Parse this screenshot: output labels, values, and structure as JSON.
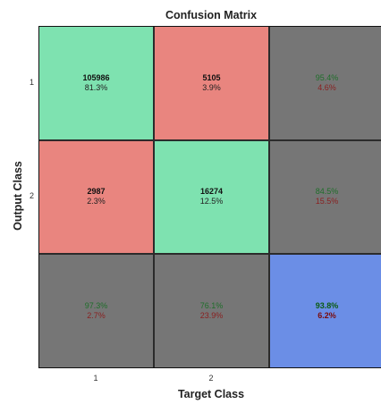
{
  "title": "Confusion Matrix",
  "xlabel": "Target Class",
  "ylabel": "Output Class",
  "x_ticks": [
    "1",
    "2"
  ],
  "y_ticks": [
    "1",
    "2"
  ],
  "colors": {
    "correct": "#7ee2b0",
    "incorrect": "#e9857f",
    "summary": "#767676",
    "total": "#6b8ee6"
  },
  "chart_data": {
    "type": "heatmap",
    "title": "Confusion Matrix",
    "xlabel": "Target Class",
    "ylabel": "Output Class",
    "classes": [
      "1",
      "2"
    ],
    "counts": [
      [
        105986,
        5105
      ],
      [
        2987,
        16274
      ]
    ],
    "count_percentages": [
      [
        "81.3%",
        "3.9%"
      ],
      [
        "2.3%",
        "12.5%"
      ]
    ],
    "row_summary": [
      {
        "correct": "95.4%",
        "incorrect": "4.6%"
      },
      {
        "correct": "84.5%",
        "incorrect": "15.5%"
      }
    ],
    "column_summary": [
      {
        "correct": "97.3%",
        "incorrect": "2.7%"
      },
      {
        "correct": "76.1%",
        "incorrect": "23.9%"
      }
    ],
    "overall": {
      "correct": "93.8%",
      "incorrect": "6.2%"
    }
  }
}
